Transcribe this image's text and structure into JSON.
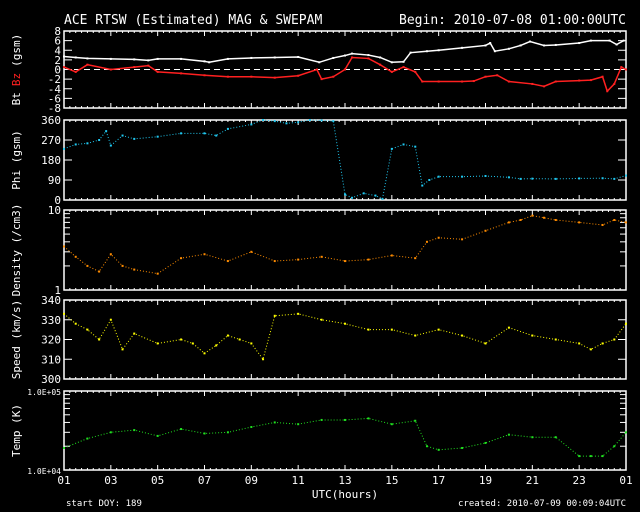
{
  "title": "ACE RTSW (Estimated) MAG & SWEPAM",
  "begin": "Begin: 2010-07-08 01:00:00UTC",
  "start_doy": "start DOY: 189",
  "created": "created: 2010-07-09 00:09:04UTC",
  "colors": {
    "bt": "#ffffff",
    "bz": "#ff2020",
    "phi": "#20c8f0",
    "density": "#ff8c00",
    "speed": "#ffff00",
    "temp": "#20e020",
    "axis": "#ffffff"
  },
  "chart_data": [
    {
      "type": "line",
      "name": "mag",
      "ylabel_parts": [
        "Bt",
        "Bz",
        "(gsm)"
      ],
      "ylim": [
        -8,
        8
      ],
      "yticks": [
        "8",
        "6",
        "4",
        "2",
        "0",
        "-2",
        "-4",
        "-6",
        "-8"
      ],
      "zero_line": true,
      "series": [
        {
          "name": "Bt",
          "color": "bt",
          "x": [
            0,
            0.5,
            1,
            2,
            3,
            3.6,
            4,
            5,
            6,
            6.2,
            7,
            8,
            9,
            10,
            10.9,
            11.5,
            12,
            12.3,
            13,
            13.5,
            14,
            14.5,
            14.8,
            15.5,
            16,
            17,
            18,
            18.2,
            18.4,
            19,
            19.5,
            19.9,
            20.5,
            21,
            22,
            22.5,
            23.3,
            23.6,
            23.9
          ],
          "y": [
            2.7,
            2.5,
            2.3,
            2.2,
            2.1,
            1.9,
            2.2,
            2.2,
            1.7,
            1.5,
            2.2,
            2.4,
            2.5,
            2.6,
            1.5,
            2.4,
            2.9,
            3.3,
            3.0,
            2.5,
            1.5,
            1.6,
            3.5,
            3.8,
            4.0,
            4.5,
            5.0,
            5.5,
            3.8,
            4.3,
            5.0,
            5.8,
            5.0,
            5.1,
            5.5,
            6.0,
            6.0,
            5.2,
            6.0
          ]
        },
        {
          "name": "Bz",
          "color": "bz",
          "x": [
            0,
            0.5,
            1,
            2,
            3,
            3.6,
            4,
            5,
            6,
            7,
            8,
            9,
            10,
            10.8,
            11,
            11.5,
            12,
            12.3,
            13,
            13.5,
            14,
            14.5,
            15,
            15.3,
            16,
            17,
            17.5,
            18,
            18.5,
            19,
            20,
            20.5,
            21,
            22,
            22.5,
            23,
            23.2,
            23.5,
            23.8,
            24
          ],
          "y": [
            0.5,
            -0.5,
            1.0,
            0,
            0.5,
            0.8,
            -0.5,
            -0.8,
            -1.2,
            -1.5,
            -1.5,
            -1.7,
            -1.3,
            0,
            -2.0,
            -1.5,
            0,
            2.5,
            2.3,
            1.0,
            -0.5,
            0.5,
            -0.5,
            -2.5,
            -2.5,
            -2.5,
            -2.4,
            -1.5,
            -1.2,
            -2.5,
            -3.0,
            -3.5,
            -2.5,
            -2.3,
            -2.2,
            -1.5,
            -4.5,
            -3.0,
            0.5,
            0
          ]
        }
      ]
    },
    {
      "type": "scatter",
      "name": "phi",
      "ylabel": "Phi (gsm)",
      "ylim": [
        0,
        360
      ],
      "yticks": [
        "360",
        "270",
        "180",
        "90",
        "0"
      ],
      "series": [
        {
          "name": "Phi",
          "color": "phi",
          "x": [
            0,
            0.5,
            1,
            1.5,
            1.8,
            2,
            2.5,
            3,
            4,
            5,
            6,
            6.5,
            7,
            8,
            8.5,
            9,
            9.5,
            10,
            10.5,
            11,
            11.5,
            12,
            12.3,
            12.8,
            13.3,
            13.6,
            14,
            14.5,
            15,
            15.3,
            15.6,
            16,
            17,
            18,
            19,
            19.5,
            20,
            21,
            22,
            23,
            23.5,
            24
          ],
          "y": [
            230,
            250,
            255,
            270,
            310,
            245,
            290,
            275,
            285,
            300,
            300,
            290,
            320,
            340,
            360,
            355,
            345,
            350,
            360,
            358,
            355,
            25,
            10,
            30,
            20,
            5,
            230,
            250,
            240,
            65,
            90,
            105,
            105,
            108,
            102,
            95,
            96,
            95,
            97,
            98,
            95,
            110
          ]
        }
      ]
    },
    {
      "type": "scatter",
      "name": "density",
      "ylabel": "Density (/cm3)",
      "yscale": "log",
      "ylim": [
        1,
        10
      ],
      "yticks": [
        "10",
        "1"
      ],
      "series": [
        {
          "name": "Density",
          "color": "density",
          "x": [
            0,
            0.5,
            1,
            1.5,
            2,
            2.5,
            3,
            4,
            5,
            6,
            7,
            8,
            9,
            10,
            11,
            12,
            13,
            14,
            15,
            15.5,
            16,
            17,
            18,
            19,
            19.5,
            20,
            20.5,
            21,
            22,
            23,
            23.5,
            24
          ],
          "y": [
            3.5,
            2.6,
            2.0,
            1.7,
            2.8,
            2.0,
            1.8,
            1.6,
            2.5,
            2.8,
            2.3,
            3.0,
            2.3,
            2.4,
            2.6,
            2.3,
            2.4,
            2.7,
            2.5,
            4.0,
            4.5,
            4.3,
            5.5,
            7.0,
            7.5,
            8.5,
            8.0,
            7.5,
            7.0,
            6.5,
            7.5,
            7.0
          ]
        }
      ]
    },
    {
      "type": "scatter",
      "name": "speed",
      "ylabel": "Speed (km/s)",
      "ylim": [
        300,
        340
      ],
      "yticks": [
        "340",
        "330",
        "320",
        "310",
        "300"
      ],
      "series": [
        {
          "name": "Speed",
          "color": "speed",
          "x": [
            0,
            0.5,
            1,
            1.5,
            2,
            2.5,
            3,
            4,
            5,
            5.5,
            6,
            6.5,
            7,
            7.5,
            8,
            8.5,
            9,
            10,
            11,
            12,
            13,
            14,
            15,
            16,
            17,
            18,
            19,
            20,
            21,
            22,
            22.5,
            23,
            23.5,
            24
          ],
          "y": [
            333,
            328,
            325,
            320,
            330,
            315,
            323,
            318,
            320,
            318,
            313,
            317,
            322,
            320,
            318,
            310,
            332,
            333,
            330,
            328,
            325,
            325,
            322,
            325,
            322,
            318,
            326,
            322,
            320,
            318,
            315,
            318,
            320,
            328
          ]
        }
      ]
    },
    {
      "type": "scatter",
      "name": "temp",
      "ylabel": "Temp (K)",
      "yscale": "log",
      "ylim": [
        10000,
        100000
      ],
      "yticks": [
        "1.0E+05",
        "1.0E+04"
      ],
      "series": [
        {
          "name": "Temp",
          "color": "temp",
          "x": [
            0,
            1,
            2,
            3,
            4,
            5,
            6,
            7,
            8,
            9,
            10,
            11,
            12,
            13,
            14,
            15,
            15.5,
            16,
            17,
            18,
            19,
            20,
            21,
            22,
            22.5,
            23,
            23.5,
            24
          ],
          "y": [
            19000,
            25000,
            30000,
            32000,
            27000,
            33000,
            29000,
            30000,
            35000,
            40000,
            38000,
            43000,
            43000,
            45000,
            38000,
            42000,
            20000,
            18000,
            19000,
            22000,
            28000,
            26000,
            26000,
            15000,
            15000,
            15000,
            20000,
            30000
          ]
        }
      ]
    }
  ],
  "xaxis": {
    "label": "UTC(hours)",
    "ticks": [
      "01",
      "03",
      "05",
      "07",
      "09",
      "11",
      "13",
      "15",
      "17",
      "19",
      "21",
      "23",
      "01"
    ],
    "range_hours": 24
  }
}
